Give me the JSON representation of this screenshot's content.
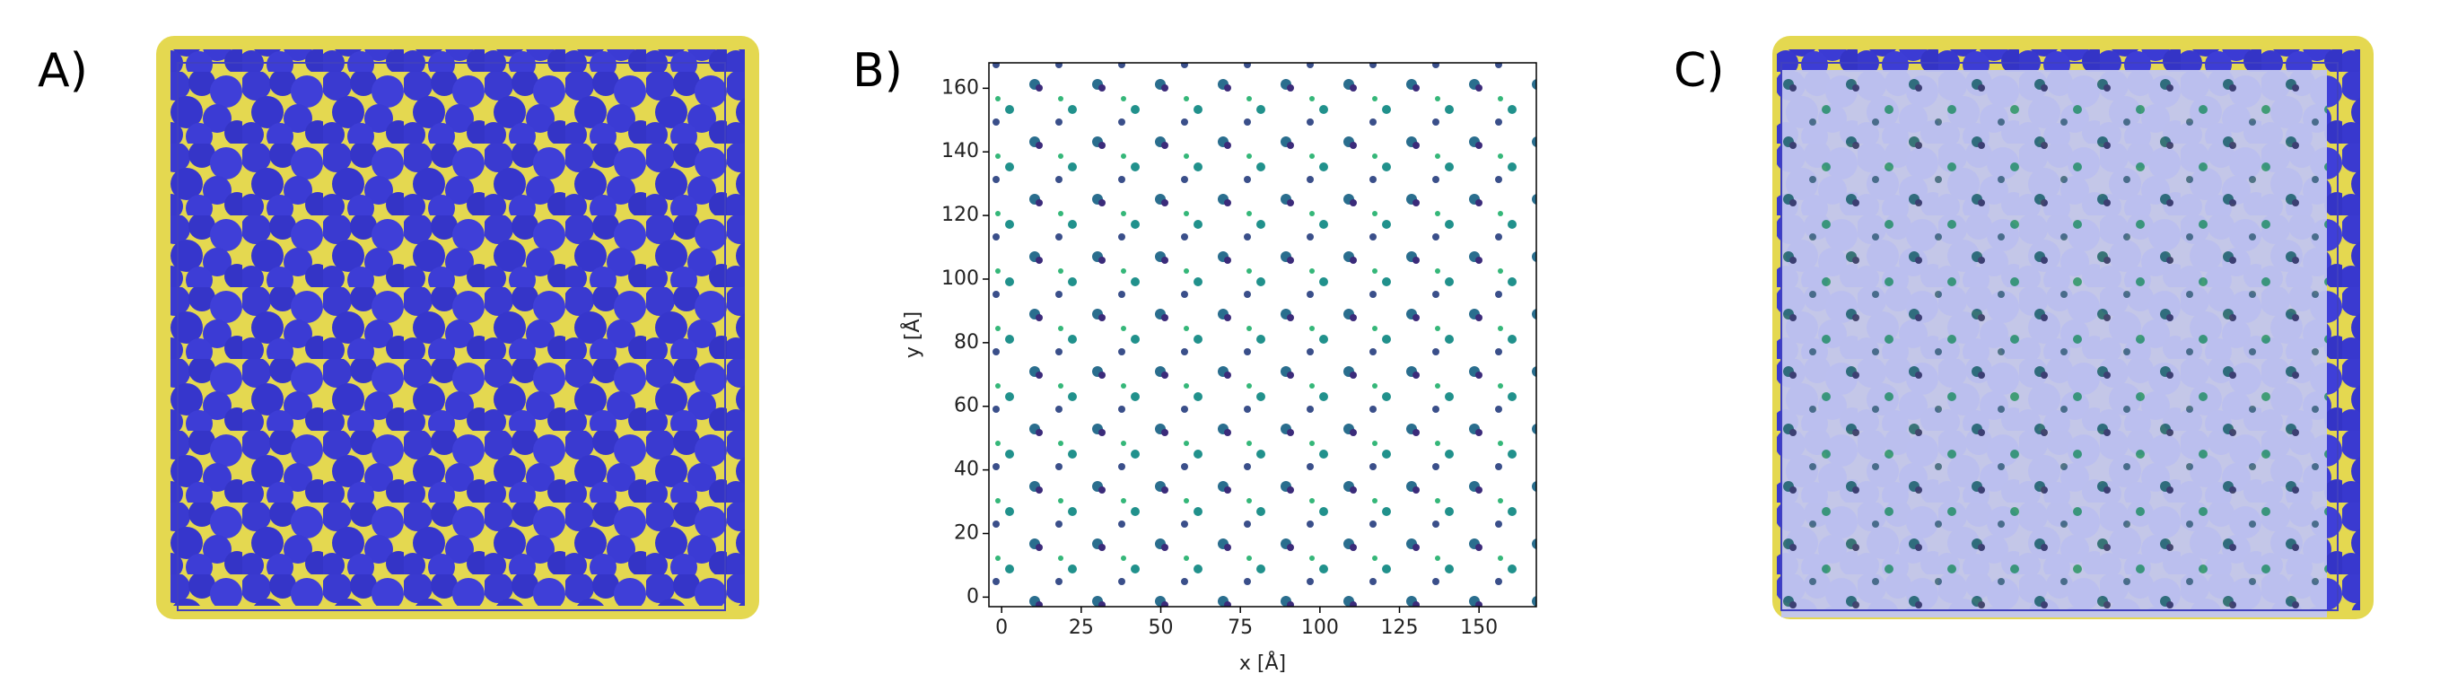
{
  "panels": {
    "labels": [
      "A)",
      "B)",
      "C)"
    ]
  },
  "chart_data": {
    "type": "heatmap",
    "xlabel": "x [Å]",
    "ylabel": "y [Å]",
    "xlim": [
      -4,
      168
    ],
    "ylim": [
      -3,
      168
    ],
    "xticks": [
      0,
      25,
      50,
      75,
      100,
      125,
      150
    ],
    "yticks": [
      0,
      20,
      40,
      60,
      80,
      100,
      120,
      140,
      160
    ]
  }
}
